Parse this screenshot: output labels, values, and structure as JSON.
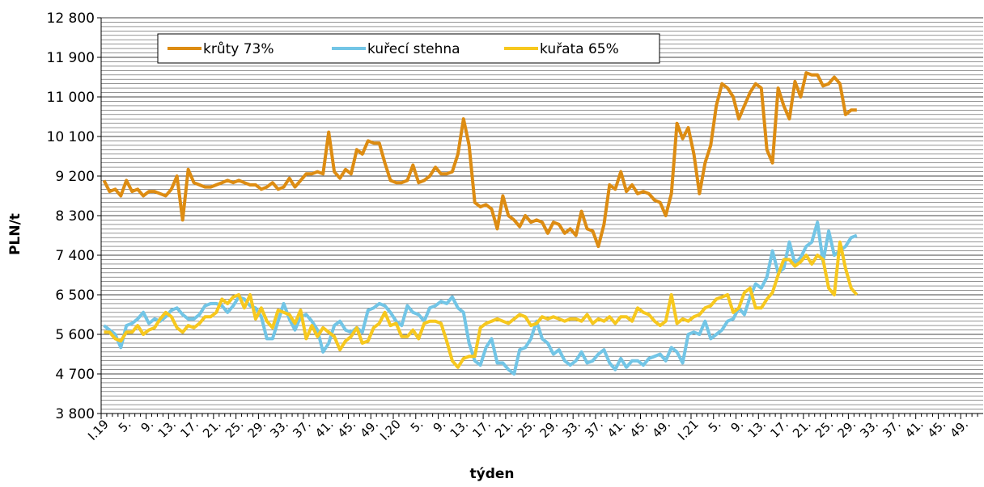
{
  "chart_data": {
    "type": "line",
    "x_label": "týden",
    "y_label": "PLN/t",
    "categories": [
      "I.19",
      null,
      null,
      null,
      "5.",
      null,
      null,
      null,
      "9.",
      null,
      null,
      null,
      "13.",
      null,
      null,
      null,
      "17.",
      null,
      null,
      null,
      "21.",
      null,
      null,
      null,
      "25.",
      null,
      null,
      null,
      "29.",
      null,
      null,
      null,
      "33.",
      null,
      null,
      null,
      "37.",
      null,
      null,
      null,
      "41.",
      null,
      null,
      null,
      "45.",
      null,
      null,
      null,
      "49.",
      null,
      null,
      null,
      "I.20",
      null,
      null,
      null,
      "5.",
      null,
      null,
      null,
      "9.",
      null,
      null,
      null,
      "13.",
      null,
      null,
      null,
      "17.",
      null,
      null,
      null,
      "21.",
      null,
      null,
      null,
      "25.",
      null,
      null,
      null,
      "29.",
      null,
      null,
      null,
      "33.",
      null,
      null,
      null,
      "37.",
      null,
      null,
      null,
      "41.",
      null,
      null,
      null,
      "45.",
      null,
      null,
      null,
      "49.",
      null,
      null,
      null,
      null,
      "I.21",
      null,
      null,
      null,
      "5.",
      null,
      null,
      null,
      "9.",
      null,
      null,
      null,
      "13.",
      null,
      null,
      null,
      "17.",
      null,
      null,
      null,
      "21.",
      null,
      null,
      null,
      "25.",
      null,
      null,
      null,
      "29.",
      null,
      null,
      null,
      "33.",
      null,
      null,
      null,
      "37.",
      null,
      null,
      null,
      "41.",
      null,
      null,
      null,
      "45.",
      null,
      null,
      null,
      "49.",
      null,
      null,
      null
    ],
    "series": [
      {
        "name": "krůty 73%",
        "color": "#dd8c12",
        "values": [
          9100,
          8850,
          8900,
          8750,
          9100,
          8850,
          8900,
          8750,
          8850,
          8850,
          8800,
          8750,
          8900,
          9200,
          8200,
          9350,
          9050,
          9000,
          8950,
          8950,
          9000,
          9050,
          9100,
          9050,
          9100,
          9050,
          9000,
          9000,
          8900,
          8950,
          9050,
          8900,
          8950,
          9150,
          8950,
          9100,
          9250,
          9250,
          9300,
          9250,
          10200,
          9300,
          9150,
          9350,
          9250,
          9800,
          9700,
          10000,
          9950,
          9950,
          9500,
          9100,
          9050,
          9050,
          9100,
          9450,
          9050,
          9100,
          9200,
          9400,
          9250,
          9250,
          9300,
          9700,
          10500,
          9900,
          8600,
          8500,
          8550,
          8450,
          8000,
          8750,
          8300,
          8200,
          8050,
          8300,
          8150,
          8200,
          8150,
          7900,
          8150,
          8100,
          7900,
          8000,
          7850,
          8400,
          8000,
          7950,
          7600,
          8100,
          9000,
          8900,
          9300,
          8850,
          9000,
          8800,
          8850,
          8800,
          8650,
          8600,
          8300,
          8800,
          10400,
          10050,
          10300,
          9700,
          8800,
          9500,
          9900,
          10800,
          11300,
          11200,
          11000,
          10500,
          10800,
          11100,
          11300,
          11200,
          9800,
          9500,
          11200,
          10800,
          10500,
          11350,
          11000,
          11550,
          11500,
          11500,
          11250,
          11300,
          11450,
          11300,
          10600,
          10700,
          10700,
          null,
          null,
          null,
          null,
          null,
          null,
          null,
          null,
          null,
          null,
          null,
          null,
          null,
          null,
          null,
          null,
          null,
          null,
          null,
          null,
          null,
          null
        ]
      },
      {
        "name": "kuřecí stehna",
        "color": "#72c5e6",
        "values": [
          5800,
          5700,
          5600,
          5300,
          5800,
          5850,
          5950,
          6100,
          5850,
          5950,
          5900,
          6000,
          6150,
          6200,
          6050,
          5950,
          5950,
          6050,
          6250,
          6300,
          6300,
          6250,
          6100,
          6250,
          6450,
          6400,
          6250,
          6200,
          6000,
          5500,
          5500,
          5900,
          6300,
          5950,
          5700,
          6000,
          6050,
          5900,
          5700,
          5200,
          5400,
          5800,
          5900,
          5700,
          5650,
          5750,
          5650,
          6150,
          6200,
          6300,
          6250,
          6100,
          5900,
          5800,
          6250,
          6100,
          6050,
          5900,
          6200,
          6250,
          6350,
          6300,
          6450,
          6200,
          6100,
          5400,
          5000,
          4900,
          5300,
          5500,
          4950,
          4950,
          4800,
          4700,
          5250,
          5300,
          5500,
          5900,
          5500,
          5400,
          5150,
          5250,
          5000,
          4900,
          5000,
          5200,
          4950,
          5000,
          5150,
          5250,
          4950,
          4800,
          5050,
          4850,
          5000,
          5000,
          4900,
          5050,
          5100,
          5150,
          5000,
          5300,
          5200,
          4950,
          5600,
          5650,
          5600,
          5900,
          5500,
          5600,
          5700,
          5900,
          5950,
          6200,
          6050,
          6450,
          6750,
          6650,
          6900,
          7500,
          7000,
          7100,
          7700,
          7200,
          7350,
          7600,
          7700,
          8150,
          7250,
          7950,
          7400,
          7500,
          7600,
          7800,
          7850,
          null,
          null,
          null,
          null,
          null,
          null,
          null,
          null,
          null,
          null,
          null,
          null,
          null,
          null,
          null,
          null,
          null,
          null,
          null,
          null,
          null,
          null
        ]
      },
      {
        "name": "kuřata 65%",
        "color": "#f7c81e",
        "values": [
          5650,
          5650,
          5500,
          5450,
          5650,
          5650,
          5800,
          5600,
          5700,
          5750,
          5950,
          6100,
          6000,
          5750,
          5650,
          5800,
          5750,
          5850,
          6000,
          6000,
          6100,
          6400,
          6300,
          6450,
          6500,
          6200,
          6500,
          5950,
          6200,
          5900,
          5750,
          6150,
          6100,
          6050,
          5850,
          6150,
          5500,
          5800,
          5550,
          5750,
          5650,
          5550,
          5250,
          5450,
          5550,
          5750,
          5400,
          5450,
          5750,
          5850,
          6100,
          5800,
          5850,
          5550,
          5550,
          5700,
          5500,
          5850,
          5900,
          5900,
          5850,
          5450,
          5000,
          4850,
          5050,
          5100,
          5100,
          5750,
          5850,
          5900,
          5950,
          5900,
          5850,
          5950,
          6050,
          6000,
          5800,
          5850,
          6000,
          5950,
          6000,
          5950,
          5900,
          5950,
          5950,
          5900,
          6050,
          5850,
          5950,
          5900,
          6000,
          5850,
          6000,
          6000,
          5900,
          6200,
          6100,
          6050,
          5900,
          5800,
          5900,
          6500,
          5850,
          5950,
          5900,
          6000,
          6050,
          6200,
          6250,
          6400,
          6450,
          6500,
          6100,
          6200,
          6550,
          6650,
          6200,
          6200,
          6400,
          6550,
          6950,
          7300,
          7300,
          7150,
          7250,
          7400,
          7200,
          7400,
          7300,
          6650,
          6500,
          7700,
          7100,
          6650,
          6500,
          null,
          null,
          null,
          null,
          null,
          null,
          null,
          null,
          null,
          null,
          null,
          null,
          null,
          null,
          null,
          null,
          null,
          null,
          null,
          null,
          null,
          null
        ]
      }
    ],
    "ylim": [
      3800,
      12800
    ],
    "yticks": [
      {
        "value": 3800,
        "label": "3 800"
      },
      {
        "value": 4700,
        "label": "4 700"
      },
      {
        "value": 5600,
        "label": "5 600"
      },
      {
        "value": 6500,
        "label": "6 500"
      },
      {
        "value": 7400,
        "label": "7 400"
      },
      {
        "value": 8300,
        "label": "8 300"
      },
      {
        "value": 9200,
        "label": "9 200"
      },
      {
        "value": 10100,
        "label": "10 100"
      },
      {
        "value": 11000,
        "label": "11 000"
      },
      {
        "value": 11900,
        "label": "11 900"
      },
      {
        "value": 12800,
        "label": "12 800"
      }
    ],
    "grid": true,
    "legend": "top-left"
  }
}
